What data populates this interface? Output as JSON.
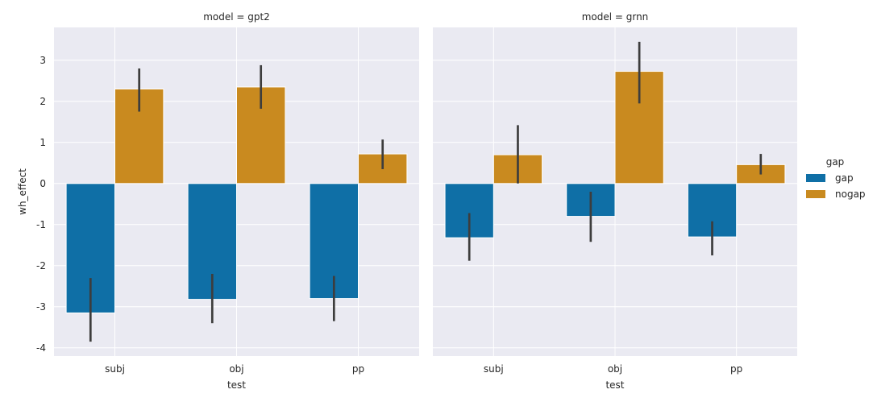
{
  "chart_data": {
    "type": "bar",
    "ylabel": "wh_effect",
    "xlabel": "test",
    "categories": [
      "subj",
      "obj",
      "pp"
    ],
    "ylim": [
      -4.2,
      3.8
    ],
    "yticks": [
      -4,
      -3,
      -2,
      -1,
      0,
      1,
      2,
      3
    ],
    "grid": true,
    "legend": {
      "title": "gap",
      "position": "right",
      "entries": [
        {
          "name": "gap",
          "color": "#0f6fa6"
        },
        {
          "name": "nogap",
          "color": "#c98a1f"
        }
      ]
    },
    "facets": [
      {
        "title": "model = gpt2",
        "series": [
          {
            "name": "gap",
            "values": [
              -3.15,
              -2.82,
              -2.8
            ],
            "ci_low": [
              -3.85,
              -3.4,
              -3.35
            ],
            "ci_high": [
              -2.3,
              -2.2,
              -2.25
            ]
          },
          {
            "name": "nogap",
            "values": [
              2.3,
              2.35,
              0.72
            ],
            "ci_low": [
              1.75,
              1.82,
              0.35
            ],
            "ci_high": [
              2.8,
              2.88,
              1.07
            ]
          }
        ]
      },
      {
        "title": "model = grnn",
        "series": [
          {
            "name": "gap",
            "values": [
              -1.32,
              -0.8,
              -1.3
            ],
            "ci_low": [
              -1.88,
              -1.42,
              -1.75
            ],
            "ci_high": [
              -0.72,
              -0.2,
              -0.92
            ]
          },
          {
            "name": "nogap",
            "values": [
              0.7,
              2.73,
              0.46
            ],
            "ci_low": [
              0.0,
              1.95,
              0.22
            ],
            "ci_high": [
              1.42,
              3.45,
              0.72
            ]
          }
        ]
      }
    ]
  }
}
